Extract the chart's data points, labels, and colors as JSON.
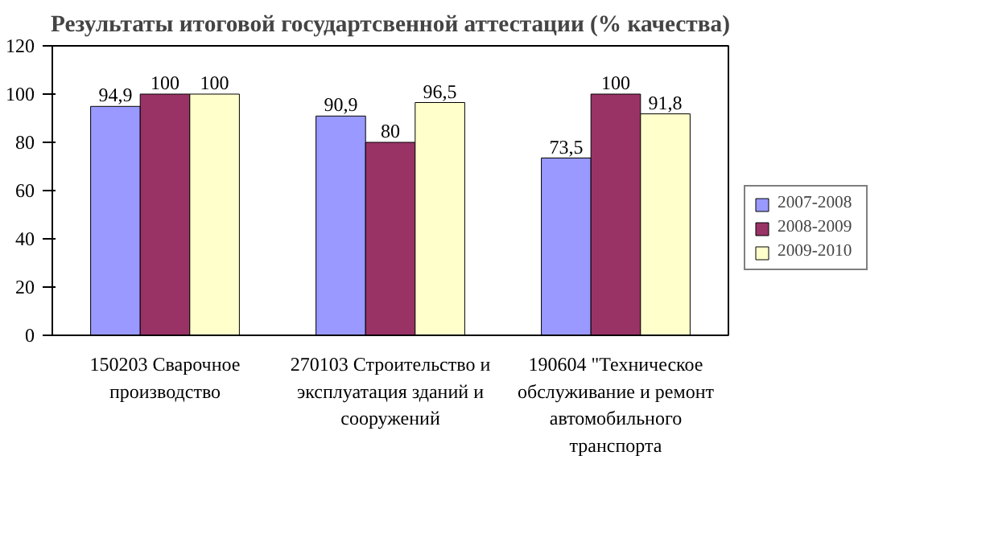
{
  "chart_data": {
    "type": "bar",
    "title": "Результаты итоговой государтсвенной аттестации (% качества)",
    "categories": [
      "150203 Сварочное производство",
      "270103 Строительство и эксплуатация зданий и сооружений",
      "190604 \"Техническое обслуживание и ремонт автомобильного транспорта"
    ],
    "series": [
      {
        "name": "2007-2008",
        "color": "#9999ff",
        "values": [
          94.9,
          90.9,
          73.5
        ],
        "value_labels": [
          "94,9",
          "90,9",
          "73,5"
        ]
      },
      {
        "name": "2008-2009",
        "color": "#993366",
        "values": [
          100,
          80,
          100
        ],
        "value_labels": [
          "100",
          "80",
          "100"
        ]
      },
      {
        "name": "2009-2010",
        "color": "#ffffcc",
        "values": [
          100,
          96.5,
          91.8
        ],
        "value_labels": [
          "100",
          "96,5",
          "91,8"
        ]
      }
    ],
    "ylim": [
      0,
      120
    ],
    "yticks": [
      0,
      20,
      40,
      60,
      80,
      100,
      120
    ],
    "legend": "right"
  }
}
